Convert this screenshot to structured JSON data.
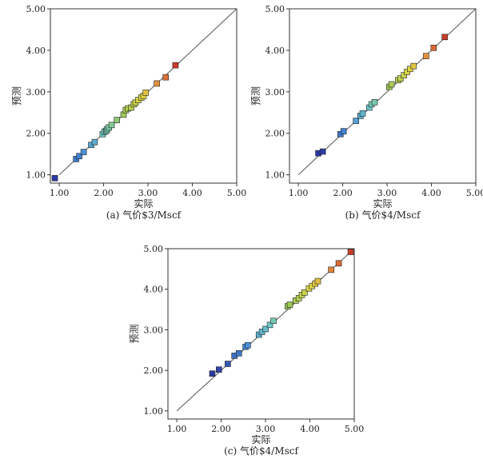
{
  "chart_data": [
    {
      "type": "scatter",
      "caption": "(a) 气价$3/Mscf",
      "xlabel": "实际",
      "ylabel": "预测",
      "xlim": [
        0.8,
        5.0
      ],
      "ylim": [
        0.8,
        5.0
      ],
      "xticks": [
        "1.00",
        "2.00",
        "3.00",
        "4.00",
        "5.00"
      ],
      "yticks": [
        "1.00",
        "2.00",
        "3.00",
        "4.00",
        "5.00"
      ],
      "reference_line": [
        [
          1.0,
          1.0
        ],
        [
          5.0,
          5.0
        ]
      ],
      "grid": false,
      "points": [
        [
          0.9,
          0.92
        ],
        [
          1.38,
          1.38
        ],
        [
          1.45,
          1.45
        ],
        [
          1.55,
          1.55
        ],
        [
          1.72,
          1.72
        ],
        [
          1.8,
          1.79
        ],
        [
          1.98,
          1.98
        ],
        [
          2.02,
          2.04
        ],
        [
          2.06,
          2.06
        ],
        [
          2.08,
          2.1
        ],
        [
          2.12,
          2.14
        ],
        [
          2.18,
          2.2
        ],
        [
          2.3,
          2.32
        ],
        [
          2.45,
          2.45
        ],
        [
          2.5,
          2.56
        ],
        [
          2.55,
          2.6
        ],
        [
          2.62,
          2.62
        ],
        [
          2.68,
          2.7
        ],
        [
          2.72,
          2.74
        ],
        [
          2.78,
          2.8
        ],
        [
          2.85,
          2.86
        ],
        [
          2.9,
          2.9
        ],
        [
          2.95,
          2.98
        ],
        [
          3.2,
          3.2
        ],
        [
          3.4,
          3.35
        ],
        [
          3.62,
          3.64
        ]
      ]
    },
    {
      "type": "scatter",
      "caption": "(b) 气价$4/Mscf",
      "xlabel": "实际",
      "ylabel": "预测",
      "xlim": [
        0.8,
        5.0
      ],
      "ylim": [
        0.8,
        5.0
      ],
      "xticks": [
        "1.00",
        "2.00",
        "3.00",
        "4.00",
        "5.00"
      ],
      "yticks": [
        "1.00",
        "2.00",
        "3.00",
        "4.00",
        "5.00"
      ],
      "reference_line": [
        [
          1.0,
          1.0
        ],
        [
          5.0,
          5.0
        ]
      ],
      "grid": false,
      "points": [
        [
          1.45,
          1.52
        ],
        [
          1.55,
          1.56
        ],
        [
          1.95,
          1.98
        ],
        [
          2.02,
          2.05
        ],
        [
          2.3,
          2.3
        ],
        [
          2.4,
          2.42
        ],
        [
          2.45,
          2.48
        ],
        [
          2.6,
          2.62
        ],
        [
          2.65,
          2.7
        ],
        [
          2.72,
          2.75
        ],
        [
          3.05,
          3.12
        ],
        [
          3.1,
          3.18
        ],
        [
          3.25,
          3.28
        ],
        [
          3.3,
          3.32
        ],
        [
          3.38,
          3.4
        ],
        [
          3.45,
          3.48
        ],
        [
          3.52,
          3.55
        ],
        [
          3.6,
          3.62
        ],
        [
          3.88,
          3.86
        ],
        [
          4.05,
          4.06
        ],
        [
          4.3,
          4.32
        ]
      ]
    },
    {
      "type": "scatter",
      "caption": "(c) 气价$4/Mscf",
      "xlabel": "实际",
      "ylabel": "预测",
      "xlim": [
        0.8,
        5.0
      ],
      "ylim": [
        0.8,
        5.0
      ],
      "xticks": [
        "1.00",
        "2.00",
        "3.00",
        "4.00",
        "5.00"
      ],
      "yticks": [
        "1.00",
        "2.00",
        "3.00",
        "4.00",
        "5.00"
      ],
      "reference_line": [
        [
          1.0,
          1.0
        ],
        [
          5.0,
          5.0
        ]
      ],
      "grid": false,
      "points": [
        [
          1.8,
          1.92
        ],
        [
          1.95,
          2.02
        ],
        [
          2.15,
          2.16
        ],
        [
          2.3,
          2.36
        ],
        [
          2.4,
          2.42
        ],
        [
          2.55,
          2.58
        ],
        [
          2.6,
          2.62
        ],
        [
          2.85,
          2.88
        ],
        [
          2.92,
          2.95
        ],
        [
          3.0,
          3.02
        ],
        [
          3.1,
          3.12
        ],
        [
          3.18,
          3.22
        ],
        [
          3.5,
          3.58
        ],
        [
          3.55,
          3.62
        ],
        [
          3.68,
          3.72
        ],
        [
          3.75,
          3.78
        ],
        [
          3.82,
          3.86
        ],
        [
          3.88,
          3.92
        ],
        [
          3.98,
          4.02
        ],
        [
          4.05,
          4.08
        ],
        [
          4.12,
          4.14
        ],
        [
          4.18,
          4.2
        ],
        [
          4.48,
          4.48
        ],
        [
          4.65,
          4.64
        ],
        [
          4.92,
          4.92
        ]
      ]
    }
  ]
}
